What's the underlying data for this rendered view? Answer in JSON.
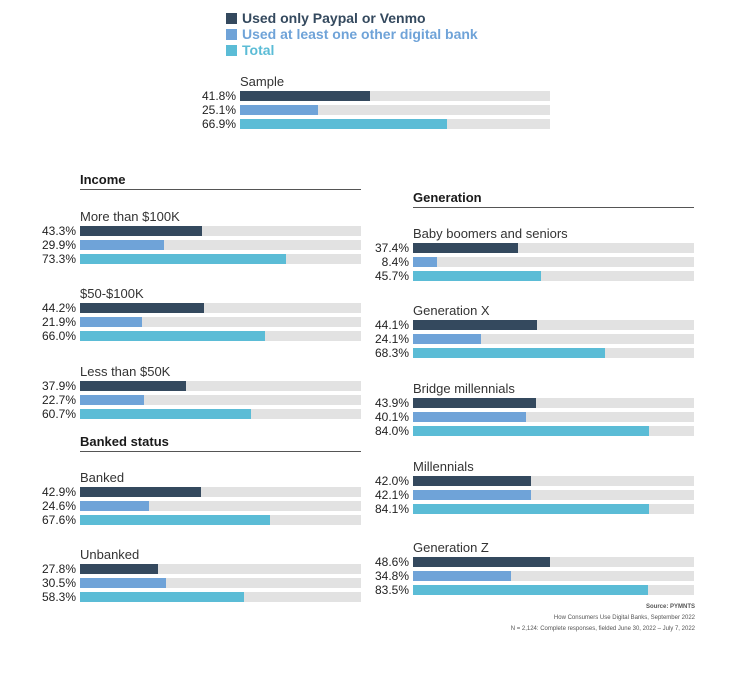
{
  "legend": [
    {
      "label": "Used only Paypal or Venmo",
      "color": "#34495e"
    },
    {
      "label": "Used at least one other digital bank",
      "color": "#6fa3d8"
    },
    {
      "label": "Total",
      "color": "#5bbcd6"
    }
  ],
  "sections": {
    "income": "Income",
    "banked_status": "Banked status",
    "generation": "Generation"
  },
  "source": {
    "line1": "Source: PYMNTS",
    "line2": "How Consumers Use Digital Banks, September 2022",
    "line3": "N = 2,124: Complete responses, fielded June 30, 2022 – July 7, 2022"
  },
  "chart_data": {
    "type": "bar",
    "orientation": "horizontal",
    "xlim": [
      0,
      100
    ],
    "series": [
      {
        "name": "Used only Paypal or Venmo",
        "color": "#34495e"
      },
      {
        "name": "Used at least one other digital bank",
        "color": "#6fa3d8"
      },
      {
        "name": "Total",
        "color": "#5bbcd6"
      }
    ],
    "groups": [
      {
        "title": "Sample",
        "values": [
          41.8,
          25.1,
          66.9
        ],
        "labels": [
          "41.8%",
          "25.1%",
          "66.9%"
        ]
      },
      {
        "title": "More than $100K",
        "values": [
          43.3,
          29.9,
          73.3
        ],
        "labels": [
          "43.3%",
          "29.9%",
          "73.3%"
        ]
      },
      {
        "title": "$50-$100K",
        "values": [
          44.2,
          21.9,
          66.0
        ],
        "labels": [
          "44.2%",
          "21.9%",
          "66.0%"
        ]
      },
      {
        "title": "Less than $50K",
        "values": [
          37.9,
          22.7,
          60.7
        ],
        "labels": [
          "37.9%",
          "22.7%",
          "60.7%"
        ]
      },
      {
        "title": "Banked",
        "values": [
          42.9,
          24.6,
          67.6
        ],
        "labels": [
          "42.9%",
          "24.6%",
          "67.6%"
        ]
      },
      {
        "title": "Unbanked",
        "values": [
          27.8,
          30.5,
          58.3
        ],
        "labels": [
          "27.8%",
          "30.5%",
          "58.3%"
        ]
      },
      {
        "title": "Baby boomers and seniors",
        "values": [
          37.4,
          8.4,
          45.7
        ],
        "labels": [
          "37.4%",
          "8.4%",
          "45.7%"
        ]
      },
      {
        "title": "Generation X",
        "values": [
          44.1,
          24.1,
          68.3
        ],
        "labels": [
          "44.1%",
          "24.1%",
          "68.3%"
        ]
      },
      {
        "title": "Bridge millennials",
        "values": [
          43.9,
          40.1,
          84.0
        ],
        "labels": [
          "43.9%",
          "40.1%",
          "84.0%"
        ]
      },
      {
        "title": "Millennials",
        "values": [
          42.0,
          42.1,
          84.1
        ],
        "labels": [
          "42.0%",
          "42.1%",
          "84.1%"
        ]
      },
      {
        "title": "Generation Z",
        "values": [
          48.6,
          34.8,
          83.5
        ],
        "labels": [
          "48.6%",
          "34.8%",
          "83.5%"
        ]
      }
    ]
  }
}
